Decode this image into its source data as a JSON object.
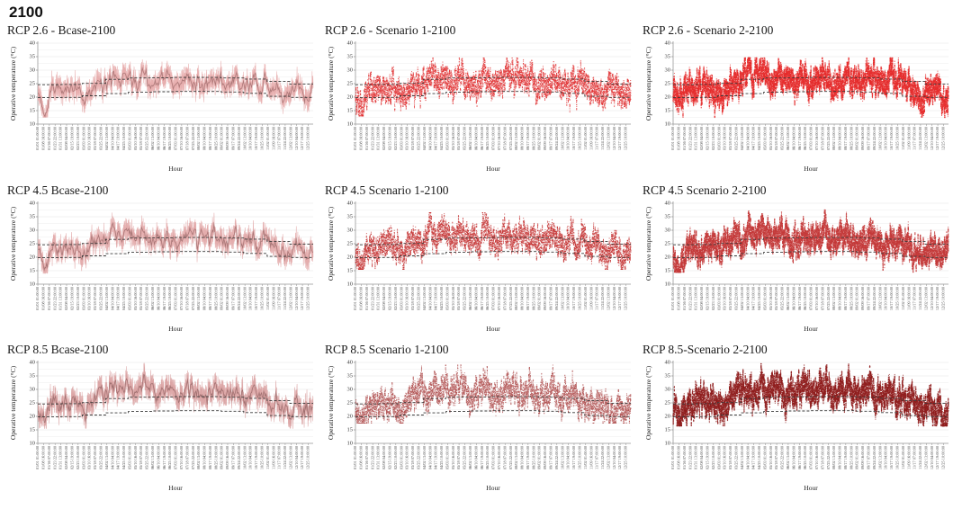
{
  "page_title": "2100",
  "axis": {
    "xlabel": "Hour",
    "ylabel": "Operative temperature (°C)",
    "ylim": [
      10,
      40
    ],
    "yticks": [
      10,
      15,
      20,
      25,
      30,
      35,
      40
    ],
    "grid_minor_step": 2.5,
    "x_tick_labels": [
      "01/01 01:00:00",
      "01/08 16:00:00",
      "01/16 07:00:00",
      "01/23 22:00:00",
      "01/31 13:00:00",
      "02/08 04:00:00",
      "02/15 19:00:00",
      "02/23 10:00:00",
      "03/03 01:00:00",
      "03/10 16:00:00",
      "03/18 07:00:00",
      "03/25 22:00:00",
      "04/02 13:00:00",
      "04/10 04:00:00",
      "04/17 19:00:00",
      "04/25 10:00:00",
      "05/03 01:00:00",
      "05/10 16:00:00",
      "05/18 07:00:00",
      "05/25 22:00:00",
      "06/02 13:00:00",
      "06/10 04:00:00",
      "06/17 19:00:00",
      "06/25 10:00:00",
      "07/03 01:00:00",
      "07/10 16:00:00",
      "07/18 07:00:00",
      "07/25 22:00:00",
      "08/02 13:00:00",
      "08/10 04:00:00",
      "08/17 19:00:00",
      "08/25 10:00:00",
      "09/02 01:00:00",
      "09/09 16:00:00",
      "09/17 07:00:00",
      "09/24 22:00:00",
      "10/02 13:00:00",
      "10/10 04:00:00",
      "10/17 19:00:00",
      "10/25 10:00:00",
      "11/02 01:00:00",
      "11/09 16:00:00",
      "11/17 07:00:00",
      "11/24 22:00:00",
      "12/02 13:00:00",
      "12/10 04:00:00",
      "12/17 19:00:00",
      "12/25 10:00:00"
    ]
  },
  "comfort_band": {
    "style": "dashed-black",
    "upper_monthly": [
      24.6,
      24.7,
      25.1,
      26.6,
      27.1,
      27.2,
      27.3,
      27.3,
      27.1,
      26.7,
      25.8,
      24.8
    ],
    "lower_monthly": [
      19.8,
      19.9,
      20.5,
      21.3,
      21.8,
      22.0,
      22.1,
      22.1,
      21.9,
      21.4,
      20.3,
      19.9
    ]
  },
  "shape": {
    "hours_per_year": 8760,
    "cold_spells": [
      {
        "day": 9,
        "depth": 6,
        "width": 4
      },
      {
        "day": 63,
        "depth": 5,
        "width": 4
      },
      {
        "day": 330,
        "depth": 3,
        "width": 4
      },
      {
        "day": 357,
        "depth": 4.5,
        "width": 3
      }
    ],
    "warm_spells": [
      {
        "day": 100,
        "amp": 3.5,
        "width": 3
      },
      {
        "day": 118,
        "amp": 4,
        "width": 3
      },
      {
        "day": 140,
        "amp": 4.5,
        "width": 3
      },
      {
        "day": 172,
        "amp": 3,
        "width": 3
      },
      {
        "day": 200,
        "amp": 3,
        "width": 3
      },
      {
        "day": 232,
        "amp": 3,
        "width": 3
      },
      {
        "day": 262,
        "amp": 3,
        "width": 2
      },
      {
        "day": 288,
        "amp": 4.5,
        "width": 2
      },
      {
        "day": 301,
        "amp": 3.5,
        "width": 2
      }
    ]
  },
  "chart_data": [
    {
      "name": "rcp26-bcase",
      "title": "RCP 2.6 - Bcase-2100",
      "type": "line",
      "color": "#e29b9b",
      "seed": 11,
      "monthly_mean": [
        22.3,
        22.6,
        23.2,
        24.6,
        25.6,
        25.2,
        24.8,
        25.3,
        24.9,
        24.6,
        23.0,
        22.6
      ],
      "daily_amplitude": 2.6,
      "noise": 1.6,
      "ymax_data": 35,
      "ymin_data": 12.5,
      "density": 1,
      "xlabel": "Hour",
      "ylabel": "Operative temperature (°C)"
    },
    {
      "name": "rcp26-scenario1",
      "title": "RCP 2.6 - Scenario 1-2100",
      "type": "scatter",
      "color": "#e03233",
      "seed": 22,
      "monthly_mean": [
        22.6,
        22.9,
        23.6,
        25.0,
        26.0,
        25.6,
        25.2,
        25.7,
        25.3,
        25.0,
        23.4,
        22.9
      ],
      "daily_amplitude": 2.8,
      "noise": 1.9,
      "ymax_data": 34.5,
      "ymin_data": 13,
      "density": 1,
      "xlabel": "Hour",
      "ylabel": "Operative temperature (°C)"
    },
    {
      "name": "rcp26-scenario2",
      "title": "RCP 2.6 - Scenario 2-2100",
      "type": "scatter",
      "color": "#e52d2d",
      "seed": 33,
      "monthly_mean": [
        22.8,
        23.1,
        23.8,
        25.2,
        26.2,
        25.8,
        25.4,
        25.9,
        25.5,
        25.2,
        23.6,
        23.1
      ],
      "daily_amplitude": 2.8,
      "noise": 2.0,
      "ymax_data": 34.5,
      "ymin_data": 12.5,
      "density": 2,
      "xlabel": "Hour",
      "ylabel": "Operative temperature (°C)"
    },
    {
      "name": "rcp45-bcase",
      "title": "RCP 4.5 Bcase-2100",
      "type": "line",
      "color": "#dd9898",
      "seed": 44,
      "monthly_mean": [
        22.8,
        23.2,
        24.4,
        26.2,
        27.2,
        26.4,
        26.0,
        26.6,
        26.2,
        25.8,
        23.8,
        23.0
      ],
      "daily_amplitude": 2.7,
      "noise": 1.7,
      "ymax_data": 37.8,
      "ymin_data": 14,
      "density": 1,
      "xlabel": "Hour",
      "ylabel": "Operative temperature (°C)"
    },
    {
      "name": "rcp45-scenario1",
      "title": "RCP 4.5 Scenario 1-2100",
      "type": "scatter",
      "color": "#c53434",
      "seed": 55,
      "monthly_mean": [
        23.0,
        23.4,
        24.6,
        26.4,
        27.4,
        26.6,
        26.2,
        26.8,
        26.4,
        26.0,
        24.0,
        23.2
      ],
      "daily_amplitude": 2.8,
      "noise": 1.9,
      "ymax_data": 36.5,
      "ymin_data": 15.5,
      "density": 1,
      "xlabel": "Hour",
      "ylabel": "Operative temperature (°C)"
    },
    {
      "name": "rcp45-scenario2",
      "title": "RCP 4.5 Scenario 2-2100",
      "type": "scatter",
      "color": "#c43a3a",
      "seed": 66,
      "monthly_mean": [
        23.2,
        23.6,
        24.8,
        26.6,
        27.6,
        26.8,
        26.4,
        27.0,
        26.6,
        26.2,
        24.2,
        23.4
      ],
      "daily_amplitude": 2.8,
      "noise": 2.0,
      "ymax_data": 37.5,
      "ymin_data": 14.5,
      "density": 2,
      "xlabel": "Hour",
      "ylabel": "Operative temperature (°C)"
    },
    {
      "name": "rcp85-bcase",
      "title": "RCP 8.5 Bcase-2100",
      "type": "line",
      "color": "#d39090",
      "seed": 77,
      "monthly_mean": [
        23.6,
        24.2,
        25.8,
        27.8,
        29.0,
        28.0,
        27.6,
        28.2,
        27.8,
        27.2,
        24.8,
        23.8
      ],
      "daily_amplitude": 2.9,
      "noise": 1.8,
      "ymax_data": 39.8,
      "ymin_data": 15.5,
      "density": 1,
      "xlabel": "Hour",
      "ylabel": "Operative temperature (°C)"
    },
    {
      "name": "rcp85-scenario1",
      "title": "RCP 8.5 Scenario 1-2100",
      "type": "scatter",
      "color": "#b25454",
      "seed": 88,
      "monthly_mean": [
        23.8,
        24.4,
        26.0,
        28.0,
        29.2,
        28.2,
        27.8,
        28.4,
        28.0,
        27.4,
        25.0,
        24.0
      ],
      "daily_amplitude": 2.9,
      "noise": 2.0,
      "ymax_data": 39,
      "ymin_data": 17.5,
      "density": 1,
      "xlabel": "Hour",
      "ylabel": "Operative temperature (°C)"
    },
    {
      "name": "rcp85-scenario2",
      "title": "RCP 8.5-Scenario 2-2100",
      "type": "scatter",
      "color": "#8f1d1d",
      "seed": 99,
      "monthly_mean": [
        24.2,
        24.8,
        26.6,
        28.6,
        29.8,
        28.8,
        28.4,
        29.0,
        28.6,
        28.0,
        25.4,
        24.4
      ],
      "daily_amplitude": 3.0,
      "noise": 2.1,
      "ymax_data": 39.5,
      "ymin_data": 16.5,
      "density": 2,
      "xlabel": "Hour",
      "ylabel": "Operative temperature (°C)"
    }
  ]
}
